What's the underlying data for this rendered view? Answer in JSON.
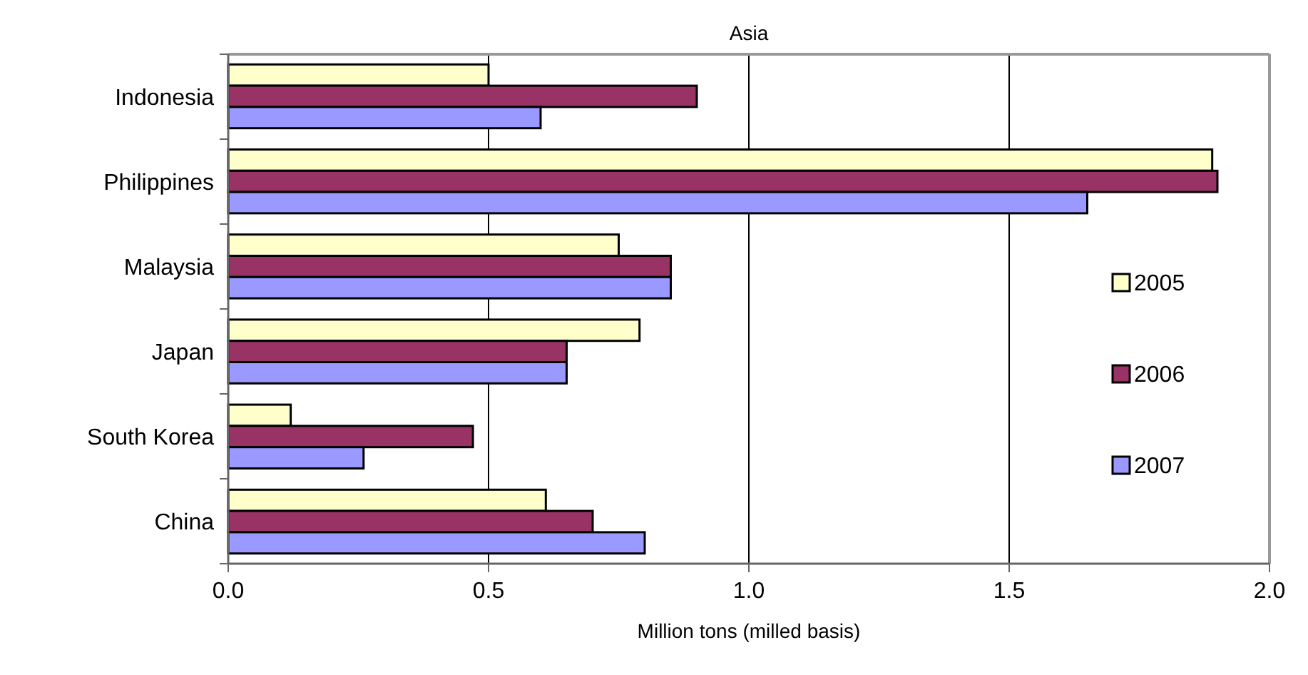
{
  "chart_data": {
    "type": "bar",
    "orientation": "horizontal",
    "title": "Asia",
    "xlabel": "Million tons (milled basis)",
    "categories": [
      "Indonesia",
      "Philippines",
      "Malaysia",
      "Japan",
      "South Korea",
      "China"
    ],
    "series": [
      {
        "name": "2005",
        "color": "#ffffcc",
        "values": [
          0.5,
          1.89,
          0.75,
          0.79,
          0.12,
          0.61
        ]
      },
      {
        "name": "2006",
        "color": "#993366",
        "values": [
          0.9,
          1.9,
          0.85,
          0.65,
          0.47,
          0.7
        ]
      },
      {
        "name": "2007",
        "color": "#9999ff",
        "values": [
          0.6,
          1.65,
          0.85,
          0.65,
          0.26,
          0.8
        ]
      }
    ],
    "xlim": [
      0,
      2
    ],
    "xticks": [
      {
        "value": 0,
        "label": "0.0"
      },
      {
        "value": 0.5,
        "label": "0.5"
      },
      {
        "value": 1,
        "label": "1.0"
      },
      {
        "value": 1.5,
        "label": "1.5"
      },
      {
        "value": 2,
        "label": "2.0"
      }
    ],
    "grid": "x",
    "legend": "right"
  }
}
